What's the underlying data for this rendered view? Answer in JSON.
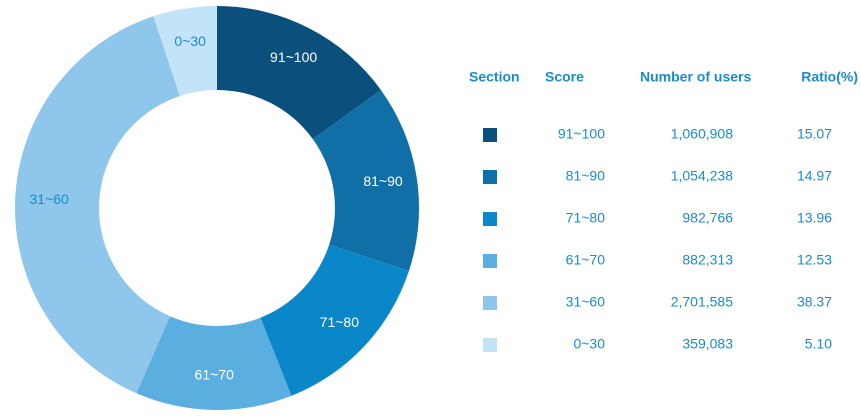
{
  "chart_data": {
    "type": "donut",
    "categories": [
      "91~100",
      "81~90",
      "71~80",
      "61~70",
      "31~60",
      "0~30"
    ],
    "values": [
      15.07,
      14.97,
      13.96,
      12.53,
      38.37,
      5.1
    ],
    "value_labels": [
      "15.07",
      "14.97",
      "13.96",
      "12.53",
      "38.37",
      "5.10"
    ],
    "colors": [
      "#0b4f7c",
      "#0f6fa6",
      "#0a87c9",
      "#5aaee0",
      "#8ec6ec",
      "#c3e4f8"
    ],
    "label_colors": [
      "#ffffff",
      "#ffffff",
      "#ffffff",
      "#ffffff",
      "#1a8ccc",
      "#1a8ccc"
    ],
    "table": {
      "columns": [
        "Section",
        "Score",
        "Number of users",
        "Ratio(%)"
      ],
      "users": [
        "1,060,908",
        "1,054,238",
        "982,766",
        "882,313",
        "2,701,585",
        "359,083"
      ]
    }
  }
}
